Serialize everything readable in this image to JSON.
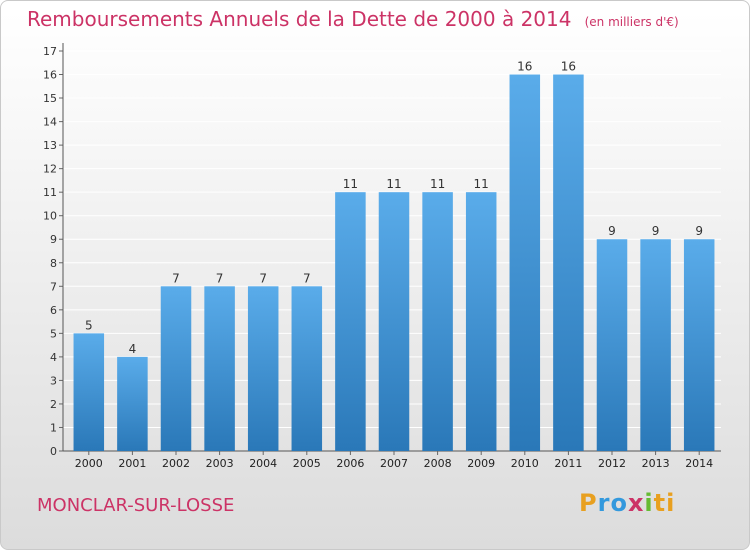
{
  "chart_data": {
    "type": "bar",
    "title": "Remboursements Annuels de la Dette de 2000 à 2014",
    "unit_note": "(en milliers d'€)",
    "categories": [
      "2000",
      "2001",
      "2002",
      "2003",
      "2004",
      "2005",
      "2006",
      "2007",
      "2008",
      "2009",
      "2010",
      "2011",
      "2012",
      "2013",
      "2014"
    ],
    "values": [
      5,
      4,
      7,
      7,
      7,
      7,
      11,
      11,
      11,
      11,
      16,
      16,
      9,
      9,
      9
    ],
    "ylim": [
      0,
      17
    ],
    "yticks": [
      0,
      1,
      2,
      3,
      4,
      5,
      6,
      7,
      8,
      9,
      10,
      11,
      12,
      13,
      14,
      15,
      16,
      17
    ],
    "grid": true,
    "xlabel": "",
    "ylabel": "",
    "colors": {
      "bar_light": "#5aacea",
      "bar_dark": "#2a78b8",
      "grid": "#ffffff",
      "title": "#cc3366"
    }
  },
  "footer": {
    "commune": "MONCLAR-SUR-LOSSE",
    "logo_text": "Proxiti"
  }
}
